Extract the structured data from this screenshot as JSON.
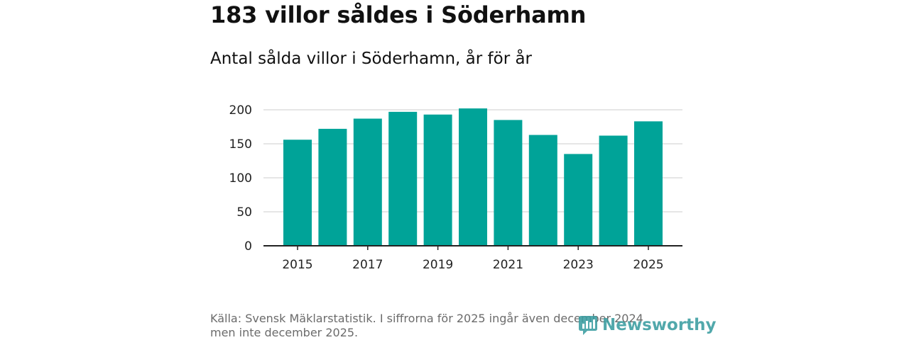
{
  "header": {
    "title": "183 villor såldes i Söderhamn",
    "subtitle": "Antal sålda villor i Söderhamn, år för år"
  },
  "footer": {
    "source_line1": "Källa: Svensk Mäklarstatistik. I siffrorna för 2025 ingår även december 2024",
    "source_line2": "men inte december 2025.",
    "brand_name": "Newsworthy",
    "brand_icon": "newsworthy-logo-icon"
  },
  "colors": {
    "bar": "#00a398",
    "grid": "#dddddd",
    "axis": "#222222",
    "brand": "#3a9da0"
  },
  "chart_data": {
    "type": "bar",
    "title": "Antal sålda villor i Söderhamn, år för år",
    "xlabel": "",
    "ylabel": "",
    "categories": [
      "2015",
      "2016",
      "2017",
      "2018",
      "2019",
      "2020",
      "2021",
      "2022",
      "2023",
      "2024",
      "2025"
    ],
    "values": [
      156,
      172,
      187,
      197,
      193,
      202,
      185,
      163,
      135,
      162,
      183
    ],
    "ylim": [
      0,
      200
    ],
    "yticks": [
      0,
      50,
      100,
      150,
      200
    ],
    "xtick_labels": [
      "2015",
      "2017",
      "2019",
      "2021",
      "2023",
      "2025"
    ],
    "grid": true,
    "legend": "none"
  }
}
